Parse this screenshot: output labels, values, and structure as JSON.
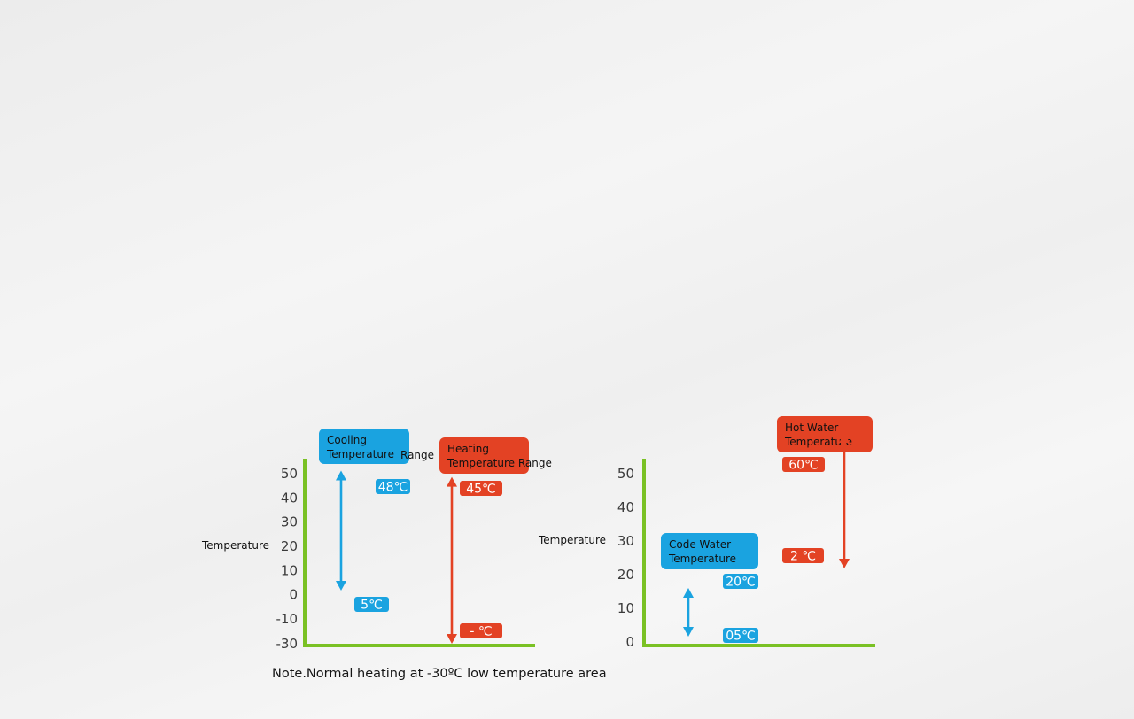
{
  "colors": {
    "axis": "#7ac124",
    "blue": "#1aa3e0",
    "red": "#e34224",
    "text": "#111111"
  },
  "chart_data": [
    {
      "type": "range",
      "ylabel": "Temperature",
      "yticks": [
        "50",
        "40",
        "30",
        "20",
        "10",
        "0",
        "-10",
        "-30"
      ],
      "ranges": [
        {
          "name": "Cooling Temperature Range",
          "label_lines": [
            "Cooling",
            "Temperature"
          ],
          "label_extra": "Range",
          "color": "blue",
          "max": 48,
          "min": 5,
          "max_label": "48℃",
          "min_label": "5℃"
        },
        {
          "name": "Heating Temperature Range",
          "label_lines": [
            "Heating",
            "Temperature Range"
          ],
          "label_extra": "",
          "color": "red",
          "max": 45,
          "min": -30,
          "max_label": "45℃",
          "min_label": "-   ℃"
        }
      ]
    },
    {
      "type": "range",
      "ylabel": "Temperature",
      "yticks": [
        "50",
        "40",
        "30",
        "20",
        "10",
        "0"
      ],
      "ranges": [
        {
          "name": "Code Water Temperature",
          "label_lines": [
            "Code Water",
            "Temperature"
          ],
          "label_extra": "",
          "color": "blue",
          "max": 20,
          "min": 5,
          "max_label": "20℃",
          "min_label": "05℃"
        },
        {
          "name": "Hot Water Temperature",
          "label_lines": [
            "Hot Water",
            "Temperature"
          ],
          "label_extra": "",
          "color": "red",
          "max": 60,
          "min": 25,
          "max_label": "60℃",
          "min_label": "2   ℃"
        }
      ]
    }
  ],
  "note": "Note.Normal heating at -30ºC low temperature area"
}
